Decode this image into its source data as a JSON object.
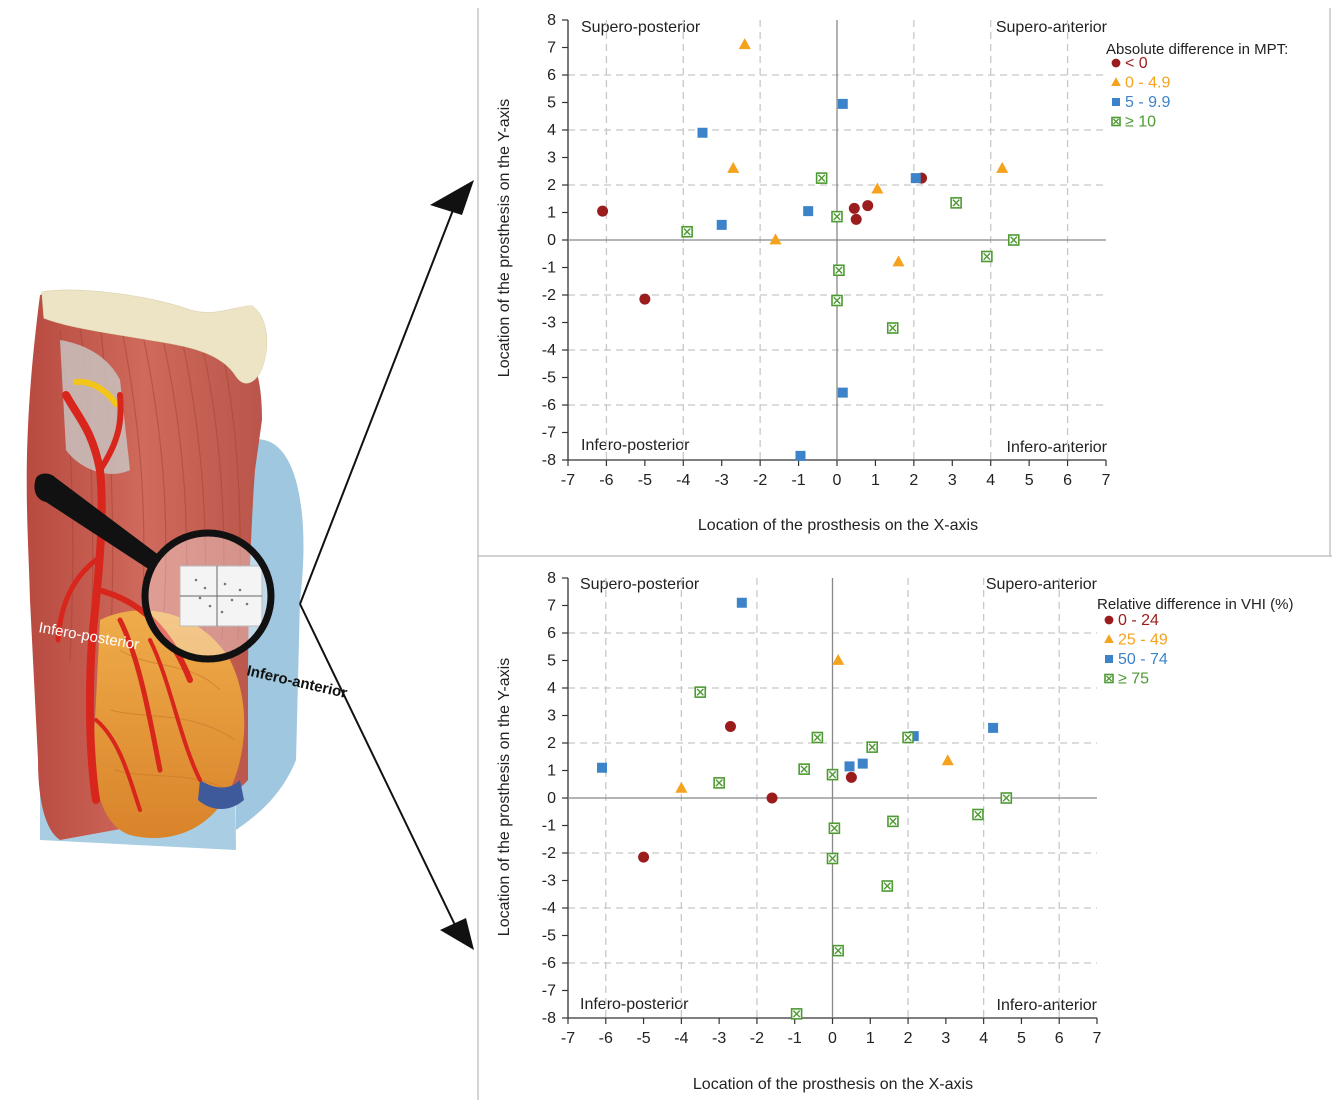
{
  "illustration": {
    "labels": {
      "posterior": "Infero-posterior",
      "anterior": "Infero-anterior"
    },
    "colors": {
      "muscle": "#c65a4e",
      "cartilage": "#ede4c6",
      "artery": "#d8261c",
      "fat": "#e6982e",
      "lens_ring": "#111111",
      "arrow": "#111111"
    }
  },
  "colors": {
    "red": "#9b1c1c",
    "orange": "#f5a21f",
    "blue": "#3d83c9",
    "green": "#4e9a32",
    "grid": "#c8c8c8",
    "axis": "#888888",
    "frame": "#b8b8b8"
  },
  "chart_data": [
    {
      "type": "scatter",
      "title": "",
      "xlabel": "Location of the prosthesis on the X-axis",
      "ylabel": "Location of the prosthesis on the Y-axis",
      "xlim": [
        -7,
        7
      ],
      "ylim": [
        -8,
        8
      ],
      "xticks": [
        -7,
        -6,
        -5,
        -4,
        -3,
        -2,
        -1,
        0,
        1,
        2,
        3,
        4,
        5,
        6,
        7
      ],
      "yticks": [
        8,
        7,
        6,
        5,
        4,
        3,
        2,
        1,
        0,
        -1,
        -2,
        -3,
        -4,
        -5,
        -6,
        -7,
        -8
      ],
      "grid": "dashed, every 2 units",
      "quadrants": {
        "top_left": "Supero-posterior",
        "top_right": "Supero-anterior",
        "bottom_left": "Infero-posterior",
        "bottom_right": "Infero-anterior"
      },
      "legend": {
        "title": "Absolute difference in MPT:",
        "position": "top-right",
        "entries": [
          {
            "label": "< 0",
            "marker": "circle",
            "color": "red"
          },
          {
            "label": "0 - 4.9",
            "marker": "triangle",
            "color": "orange"
          },
          {
            "label": "5 - 9.9",
            "marker": "square",
            "color": "blue"
          },
          {
            "label": "≥ 10",
            "marker": "boxcross",
            "color": "green"
          }
        ]
      },
      "series": [
        {
          "name": "< 0",
          "marker": "circle",
          "color": "red",
          "points": [
            [
              -6.1,
              1.05
            ],
            [
              -5.0,
              -2.15
            ],
            [
              0.45,
              1.15
            ],
            [
              0.5,
              0.75
            ],
            [
              0.8,
              1.25
            ],
            [
              2.2,
              2.25
            ]
          ]
        },
        {
          "name": "0 - 4.9",
          "marker": "triangle",
          "color": "orange",
          "points": [
            [
              -2.4,
              7.1
            ],
            [
              -2.7,
              2.6
            ],
            [
              -1.6,
              0.0
            ],
            [
              1.05,
              1.85
            ],
            [
              1.6,
              -0.8
            ],
            [
              4.3,
              2.6
            ]
          ]
        },
        {
          "name": "5 - 9.9",
          "marker": "square",
          "color": "blue",
          "points": [
            [
              -3.5,
              3.9
            ],
            [
              -3.0,
              0.55
            ],
            [
              -0.75,
              1.05
            ],
            [
              0.15,
              4.95
            ],
            [
              0.15,
              -5.55
            ],
            [
              -0.95,
              -7.85
            ],
            [
              2.05,
              2.25
            ]
          ]
        },
        {
          "name": "≥ 10",
          "marker": "boxcross",
          "color": "green",
          "points": [
            [
              -3.9,
              0.3
            ],
            [
              -0.4,
              2.25
            ],
            [
              0.0,
              0.85
            ],
            [
              0.05,
              -1.1
            ],
            [
              0.0,
              -2.2
            ],
            [
              1.45,
              -3.2
            ],
            [
              3.1,
              1.35
            ],
            [
              3.9,
              -0.6
            ],
            [
              4.6,
              0.0
            ]
          ]
        }
      ]
    },
    {
      "type": "scatter",
      "title": "",
      "xlabel": "Location of the prosthesis on the X-axis",
      "ylabel": "Location of the prosthesis on the Y-axis",
      "xlim": [
        -7,
        7
      ],
      "ylim": [
        -8,
        8
      ],
      "xticks": [
        -7,
        -6,
        -5,
        -4,
        -3,
        -2,
        -1,
        0,
        1,
        2,
        3,
        4,
        5,
        6,
        7
      ],
      "yticks": [
        8,
        7,
        6,
        5,
        4,
        3,
        2,
        1,
        0,
        -1,
        -2,
        -3,
        -4,
        -5,
        -6,
        -7,
        -8
      ],
      "grid": "dashed, every 2 units",
      "quadrants": {
        "top_left": "Supero-posterior",
        "top_right": "Supero-anterior",
        "bottom_left": "Infero-posterior",
        "bottom_right": "Infero-anterior"
      },
      "legend": {
        "title": "Relative difference in VHI (%)",
        "position": "top-right",
        "entries": [
          {
            "label": "0 - 24",
            "marker": "circle",
            "color": "red"
          },
          {
            "label": "25 - 49",
            "marker": "triangle",
            "color": "orange"
          },
          {
            "label": "50 - 74",
            "marker": "square",
            "color": "blue"
          },
          {
            "label": "≥ 75",
            "marker": "boxcross",
            "color": "green"
          }
        ]
      },
      "series": [
        {
          "name": "0 - 24",
          "marker": "circle",
          "color": "red",
          "points": [
            [
              -5.0,
              -2.15
            ],
            [
              -2.7,
              2.6
            ],
            [
              -1.6,
              0.0
            ],
            [
              0.5,
              0.75
            ]
          ]
        },
        {
          "name": "25 - 49",
          "marker": "triangle",
          "color": "orange",
          "points": [
            [
              -4.0,
              0.35
            ],
            [
              0.15,
              5.0
            ],
            [
              3.05,
              1.35
            ]
          ]
        },
        {
          "name": "50 - 74",
          "marker": "square",
          "color": "blue",
          "points": [
            [
              -6.1,
              1.1
            ],
            [
              -2.4,
              7.1
            ],
            [
              0.45,
              1.15
            ],
            [
              0.8,
              1.25
            ],
            [
              2.15,
              2.25
            ],
            [
              4.25,
              2.55
            ]
          ]
        },
        {
          "name": "≥ 75",
          "marker": "boxcross",
          "color": "green",
          "points": [
            [
              -3.5,
              3.85
            ],
            [
              -3.0,
              0.55
            ],
            [
              -0.75,
              1.05
            ],
            [
              -0.4,
              2.2
            ],
            [
              0.0,
              0.85
            ],
            [
              0.05,
              -1.1
            ],
            [
              0.0,
              -2.2
            ],
            [
              0.15,
              -5.55
            ],
            [
              1.05,
              1.85
            ],
            [
              1.6,
              -0.85
            ],
            [
              2.0,
              2.2
            ],
            [
              1.45,
              -3.2
            ],
            [
              3.85,
              -0.6
            ],
            [
              4.6,
              0.0
            ],
            [
              -0.95,
              -7.85
            ]
          ]
        }
      ]
    }
  ]
}
